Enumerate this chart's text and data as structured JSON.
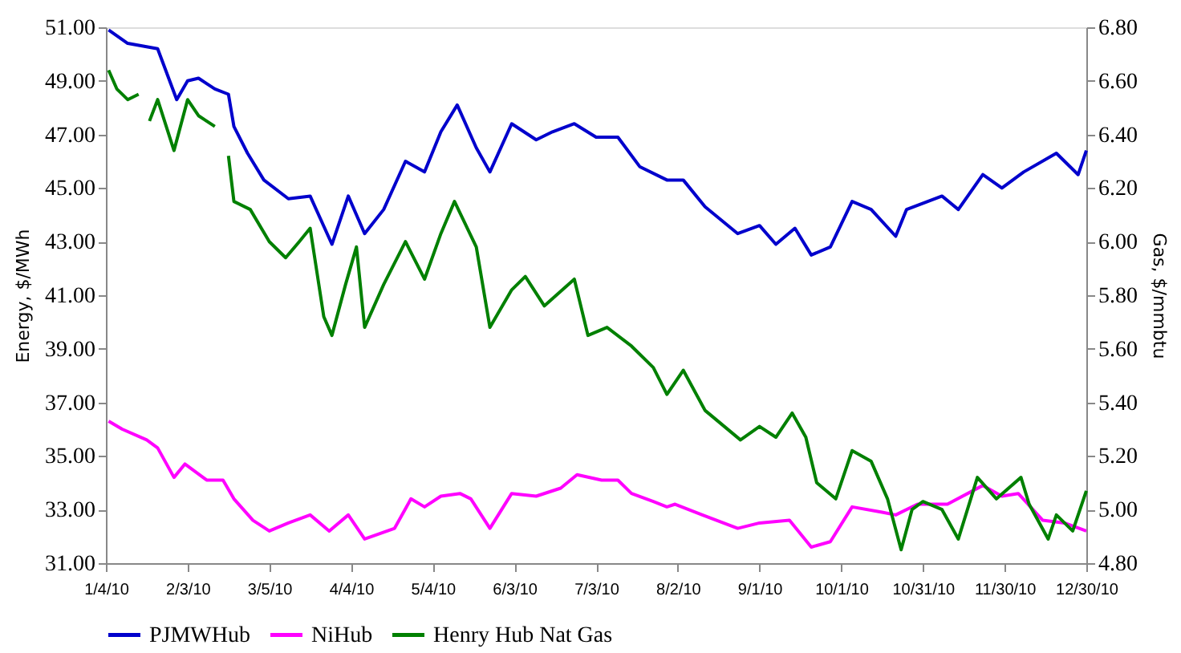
{
  "chart_data": {
    "type": "line",
    "ylabel": "Energy, $/MWh",
    "y2label": "Gas, $/mmbtu",
    "xlim": [
      "2010-01-04",
      "2010-12-30"
    ],
    "xticks": [
      {
        "value": "2010-01-04",
        "label": "1/4/10"
      },
      {
        "value": "2010-02-03",
        "label": "2/3/10"
      },
      {
        "value": "2010-03-05",
        "label": "3/5/10"
      },
      {
        "value": "2010-04-04",
        "label": "4/4/10"
      },
      {
        "value": "2010-05-04",
        "label": "5/4/10"
      },
      {
        "value": "2010-06-03",
        "label": "6/3/10"
      },
      {
        "value": "2010-07-03",
        "label": "7/3/10"
      },
      {
        "value": "2010-08-02",
        "label": "8/2/10"
      },
      {
        "value": "2010-09-01",
        "label": "9/1/10"
      },
      {
        "value": "2010-10-01",
        "label": "10/1/10"
      },
      {
        "value": "2010-10-31",
        "label": "10/31/10"
      },
      {
        "value": "2010-11-30",
        "label": "11/30/10"
      },
      {
        "value": "2010-12-30",
        "label": "12/30/10"
      }
    ],
    "ylim": [
      31,
      51
    ],
    "yticks": [
      {
        "value": 31,
        "label": "31.00"
      },
      {
        "value": 33,
        "label": "33.00"
      },
      {
        "value": 35,
        "label": "35.00"
      },
      {
        "value": 37,
        "label": "37.00"
      },
      {
        "value": 39,
        "label": "39.00"
      },
      {
        "value": 41,
        "label": "41.00"
      },
      {
        "value": 43,
        "label": "43.00"
      },
      {
        "value": 45,
        "label": "45.00"
      },
      {
        "value": 47,
        "label": "47.00"
      },
      {
        "value": 49,
        "label": "49.00"
      },
      {
        "value": 51,
        "label": "51.00"
      }
    ],
    "y2lim": [
      4.8,
      6.8
    ],
    "y2ticks": [
      {
        "value": 4.8,
        "label": "4.80"
      },
      {
        "value": 5.0,
        "label": "5.00"
      },
      {
        "value": 5.2,
        "label": "5.20"
      },
      {
        "value": 5.4,
        "label": "5.40"
      },
      {
        "value": 5.6,
        "label": "5.60"
      },
      {
        "value": 5.8,
        "label": "5.80"
      },
      {
        "value": 6.0,
        "label": "6.00"
      },
      {
        "value": 6.2,
        "label": "6.20"
      },
      {
        "value": 6.4,
        "label": "6.40"
      },
      {
        "value": 6.6,
        "label": "6.60"
      },
      {
        "value": 6.8,
        "label": "6.80"
      }
    ],
    "grid": false,
    "legend": "bottom",
    "marker": "none",
    "line_style": "solid",
    "series": [
      {
        "name": "PJMWHub",
        "color": "#0000cc",
        "x": [
          "2010-01-05",
          "2010-01-12",
          "2010-01-23",
          "2010-01-30",
          "2010-02-03",
          "2010-02-07",
          "2010-02-13",
          "2010-02-18",
          "2010-02-20",
          "2010-02-25",
          "2010-03-03",
          "2010-03-12",
          "2010-03-20",
          "2010-03-28",
          "2010-04-03",
          "2010-04-09",
          "2010-04-16",
          "2010-04-24",
          "2010-05-01",
          "2010-05-07",
          "2010-05-13",
          "2010-05-20",
          "2010-05-25",
          "2010-06-02",
          "2010-06-11",
          "2010-06-17",
          "2010-06-25",
          "2010-07-03",
          "2010-07-11",
          "2010-07-19",
          "2010-07-29",
          "2010-08-04",
          "2010-08-12",
          "2010-08-24",
          "2010-09-01",
          "2010-09-07",
          "2010-09-14",
          "2010-09-20",
          "2010-09-27",
          "2010-10-05",
          "2010-10-12",
          "2010-10-21",
          "2010-10-25",
          "2010-11-07",
          "2010-11-13",
          "2010-11-22",
          "2010-11-29",
          "2010-12-07",
          "2010-12-19",
          "2010-12-27",
          "2010-12-30"
        ],
        "values": [
          50.9,
          50.4,
          50.2,
          48.3,
          49.0,
          49.1,
          48.7,
          48.5,
          47.3,
          46.3,
          45.3,
          44.6,
          44.7,
          42.9,
          44.7,
          43.3,
          44.2,
          46.0,
          45.6,
          47.1,
          48.1,
          46.5,
          45.6,
          47.4,
          46.8,
          47.1,
          47.4,
          46.9,
          46.9,
          45.8,
          45.3,
          45.3,
          44.3,
          43.3,
          43.6,
          42.9,
          43.5,
          42.5,
          42.8,
          44.5,
          44.2,
          43.2,
          44.2,
          44.7,
          44.2,
          45.5,
          45.0,
          45.6,
          46.3,
          45.5,
          46.4
        ]
      },
      {
        "name": "NiHub",
        "color": "#ff00ff",
        "x": [
          "2010-01-05",
          "2010-01-10",
          "2010-01-19",
          "2010-01-23",
          "2010-01-29",
          "2010-02-02",
          "2010-02-10",
          "2010-02-16",
          "2010-02-20",
          "2010-02-27",
          "2010-03-05",
          "2010-03-12",
          "2010-03-20",
          "2010-03-27",
          "2010-04-03",
          "2010-04-09",
          "2010-04-20",
          "2010-04-26",
          "2010-05-01",
          "2010-05-07",
          "2010-05-14",
          "2010-05-18",
          "2010-05-25",
          "2010-06-02",
          "2010-06-11",
          "2010-06-20",
          "2010-06-26",
          "2010-07-05",
          "2010-07-11",
          "2010-07-16",
          "2010-07-24",
          "2010-07-29",
          "2010-08-01",
          "2010-08-11",
          "2010-08-24",
          "2010-09-01",
          "2010-09-12",
          "2010-09-20",
          "2010-09-27",
          "2010-10-05",
          "2010-10-16",
          "2010-10-21",
          "2010-10-29",
          "2010-11-09",
          "2010-11-22",
          "2010-11-29",
          "2010-12-05",
          "2010-12-14",
          "2010-12-22",
          "2010-12-30"
        ],
        "values": [
          36.3,
          36.0,
          35.6,
          35.3,
          34.2,
          34.7,
          34.1,
          34.1,
          33.4,
          32.6,
          32.2,
          32.5,
          32.8,
          32.2,
          32.8,
          31.9,
          32.3,
          33.4,
          33.1,
          33.5,
          33.6,
          33.4,
          32.3,
          33.6,
          33.5,
          33.8,
          34.3,
          34.1,
          34.1,
          33.6,
          33.3,
          33.1,
          33.2,
          32.8,
          32.3,
          32.5,
          32.6,
          31.6,
          31.8,
          33.1,
          32.9,
          32.8,
          33.2,
          33.2,
          33.9,
          33.5,
          33.6,
          32.6,
          32.5,
          32.2
        ]
      },
      {
        "name": "Henry Hub Nat Gas",
        "color": "#008000",
        "axis": "y2",
        "x": [
          "2010-01-05",
          "2010-01-08",
          "2010-01-12",
          "2010-01-16",
          "2010-01-18",
          "2010-01-20",
          "2010-01-23",
          "2010-01-29",
          "2010-02-03",
          "2010-02-07",
          "2010-02-13",
          "2010-02-15",
          "2010-02-18",
          "2010-02-20",
          "2010-02-26",
          "2010-03-05",
          "2010-03-11",
          "2010-03-16",
          "2010-03-20",
          "2010-03-25",
          "2010-03-28",
          "2010-04-02",
          "2010-04-06",
          "2010-04-09",
          "2010-04-16",
          "2010-04-24",
          "2010-05-01",
          "2010-05-07",
          "2010-05-12",
          "2010-05-20",
          "2010-05-25",
          "2010-06-02",
          "2010-06-07",
          "2010-06-14",
          "2010-06-25",
          "2010-06-30",
          "2010-07-07",
          "2010-07-16",
          "2010-07-24",
          "2010-07-29",
          "2010-08-04",
          "2010-08-12",
          "2010-08-25",
          "2010-09-01",
          "2010-09-07",
          "2010-09-13",
          "2010-09-18",
          "2010-09-22",
          "2010-09-29",
          "2010-10-05",
          "2010-10-12",
          "2010-10-18",
          "2010-10-23",
          "2010-10-27",
          "2010-10-31",
          "2010-11-07",
          "2010-11-13",
          "2010-11-20",
          "2010-11-27",
          "2010-12-06",
          "2010-12-09",
          "2010-12-16",
          "2010-12-19",
          "2010-12-25",
          "2010-12-30"
        ],
        "values": [
          6.64,
          6.57,
          6.53,
          6.55,
          null,
          6.45,
          6.53,
          6.34,
          6.53,
          6.47,
          6.43,
          null,
          6.32,
          6.15,
          6.12,
          6.0,
          5.94,
          6.0,
          6.05,
          5.72,
          5.65,
          5.84,
          5.98,
          5.68,
          5.84,
          6.0,
          5.86,
          6.03,
          6.15,
          5.98,
          5.68,
          5.82,
          5.87,
          5.76,
          5.86,
          5.65,
          5.68,
          5.61,
          5.53,
          5.43,
          5.52,
          5.37,
          5.26,
          5.31,
          5.27,
          5.36,
          5.27,
          5.1,
          5.04,
          5.22,
          5.18,
          5.04,
          4.85,
          5.0,
          5.03,
          5.0,
          4.89,
          5.12,
          5.04,
          5.12,
          5.02,
          4.89,
          4.98,
          4.92,
          5.07
        ]
      }
    ]
  }
}
